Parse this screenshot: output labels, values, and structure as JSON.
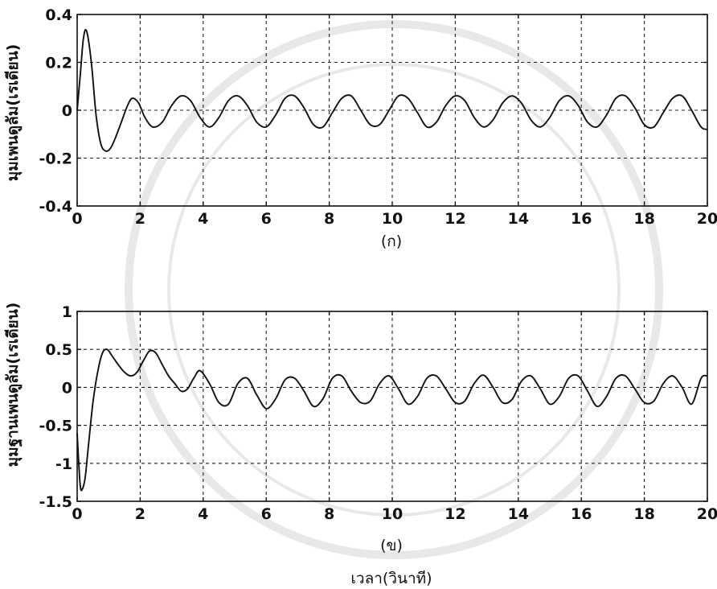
{
  "chart_data": [
    {
      "type": "line",
      "title": "",
      "caption": "(ก)",
      "xlabel": "",
      "ylabel": "มุมเพนดูลัม(เรเดียน)",
      "xlim": [
        0,
        20
      ],
      "ylim": [
        -0.4,
        0.4
      ],
      "xticks": [
        0,
        2,
        4,
        6,
        8,
        10,
        12,
        14,
        16,
        18,
        20
      ],
      "yticks": [
        -0.4,
        -0.2,
        0,
        0.2,
        0.4
      ],
      "xtick_labels": [
        "0",
        "2",
        "4",
        "6",
        "8",
        "10",
        "12",
        "14",
        "16",
        "18",
        "20"
      ],
      "ytick_labels": [
        "-0.4",
        "-0.2",
        "0",
        "0.2",
        "0.4"
      ],
      "grid": true,
      "series": [
        {
          "x": [
            0,
            0.1,
            0.2,
            0.3,
            0.45,
            0.6,
            0.75,
            0.9,
            1.05,
            1.2,
            1.4,
            1.6,
            1.75,
            1.95,
            2.15,
            2.4,
            2.7,
            3.0,
            3.3,
            3.6,
            3.9,
            4.2,
            4.5,
            4.8,
            5.1,
            5.4,
            5.7,
            6.0,
            6.3,
            6.6,
            6.9,
            7.2,
            7.5,
            7.8,
            8.1,
            8.4,
            8.7,
            9.0,
            9.3,
            9.6,
            9.9,
            10.2,
            10.5,
            10.8,
            11.1,
            11.4,
            11.7,
            12.0,
            12.3,
            12.6,
            12.9,
            13.2,
            13.5,
            13.8,
            14.1,
            14.4,
            14.7,
            15.0,
            15.3,
            15.6,
            15.9,
            16.2,
            16.5,
            16.8,
            17.1,
            17.4,
            17.7,
            18.0,
            18.3,
            18.6,
            18.9,
            19.2,
            19.5,
            19.8,
            20.0
          ],
          "y": [
            0.0,
            0.15,
            0.3,
            0.33,
            0.2,
            -0.02,
            -0.14,
            -0.17,
            -0.16,
            -0.12,
            -0.05,
            0.02,
            0.05,
            0.03,
            -0.03,
            -0.07,
            -0.05,
            0.02,
            0.06,
            0.04,
            -0.03,
            -0.07,
            -0.03,
            0.04,
            0.06,
            0.02,
            -0.05,
            -0.07,
            -0.02,
            0.05,
            0.06,
            0.01,
            -0.06,
            -0.07,
            -0.01,
            0.05,
            0.06,
            0.0,
            -0.06,
            -0.06,
            0.0,
            0.06,
            0.05,
            -0.01,
            -0.07,
            -0.05,
            0.02,
            0.06,
            0.04,
            -0.03,
            -0.07,
            -0.04,
            0.03,
            0.06,
            0.03,
            -0.04,
            -0.07,
            -0.03,
            0.04,
            0.06,
            0.02,
            -0.05,
            -0.07,
            -0.02,
            0.05,
            0.06,
            0.01,
            -0.06,
            -0.07,
            -0.01,
            0.05,
            0.06,
            0.0,
            -0.07,
            -0.08
          ]
        }
      ]
    },
    {
      "type": "line",
      "title": "",
      "caption": "(ข)",
      "xlabel": "เวลา(วินาที)",
      "ylabel": "มุมฐานเพนดูลัม(เรเดียน)",
      "xlim": [
        0,
        20
      ],
      "ylim": [
        -1.5,
        1
      ],
      "xticks": [
        0,
        2,
        4,
        6,
        8,
        10,
        12,
        14,
        16,
        18,
        20
      ],
      "yticks": [
        -1.5,
        -1,
        -0.5,
        0,
        0.5,
        1
      ],
      "xtick_labels": [
        "0",
        "2",
        "4",
        "6",
        "8",
        "10",
        "12",
        "14",
        "16",
        "18",
        "20"
      ],
      "ytick_labels": [
        "-1.5",
        "-1",
        "-0.5",
        "0",
        "0.5",
        "1"
      ],
      "grid": true,
      "series": [
        {
          "x": [
            0,
            0.05,
            0.1,
            0.15,
            0.25,
            0.35,
            0.5,
            0.65,
            0.8,
            0.95,
            1.1,
            1.3,
            1.5,
            1.7,
            1.9,
            2.1,
            2.3,
            2.5,
            2.7,
            2.9,
            3.1,
            3.3,
            3.5,
            3.7,
            3.9,
            4.2,
            4.5,
            4.8,
            5.1,
            5.4,
            5.7,
            6.0,
            6.3,
            6.6,
            6.9,
            7.2,
            7.5,
            7.8,
            8.1,
            8.4,
            8.7,
            9.0,
            9.3,
            9.6,
            9.9,
            10.2,
            10.5,
            10.8,
            11.1,
            11.4,
            11.7,
            12.0,
            12.3,
            12.6,
            12.9,
            13.2,
            13.5,
            13.8,
            14.1,
            14.4,
            14.7,
            15.0,
            15.3,
            15.6,
            15.9,
            16.2,
            16.5,
            16.8,
            17.1,
            17.4,
            17.7,
            18.0,
            18.3,
            18.6,
            18.9,
            19.2,
            19.5,
            19.8,
            20.0
          ],
          "y": [
            -0.6,
            -1.0,
            -1.3,
            -1.35,
            -1.2,
            -0.8,
            -0.2,
            0.2,
            0.45,
            0.5,
            0.42,
            0.3,
            0.2,
            0.15,
            0.2,
            0.35,
            0.48,
            0.45,
            0.3,
            0.15,
            0.05,
            -0.05,
            -0.02,
            0.12,
            0.22,
            0.05,
            -0.2,
            -0.22,
            0.05,
            0.12,
            -0.1,
            -0.28,
            -0.15,
            0.1,
            0.12,
            -0.05,
            -0.25,
            -0.15,
            0.12,
            0.15,
            -0.05,
            -0.2,
            -0.18,
            0.05,
            0.15,
            -0.02,
            -0.22,
            -0.12,
            0.12,
            0.15,
            -0.02,
            -0.2,
            -0.18,
            0.05,
            0.16,
            0.0,
            -0.2,
            -0.16,
            0.08,
            0.15,
            -0.02,
            -0.22,
            -0.12,
            0.12,
            0.15,
            -0.05,
            -0.25,
            -0.12,
            0.12,
            0.15,
            -0.02,
            -0.2,
            -0.18,
            0.05,
            0.15,
            0.0,
            -0.22,
            0.12,
            0.15
          ]
        }
      ]
    }
  ]
}
